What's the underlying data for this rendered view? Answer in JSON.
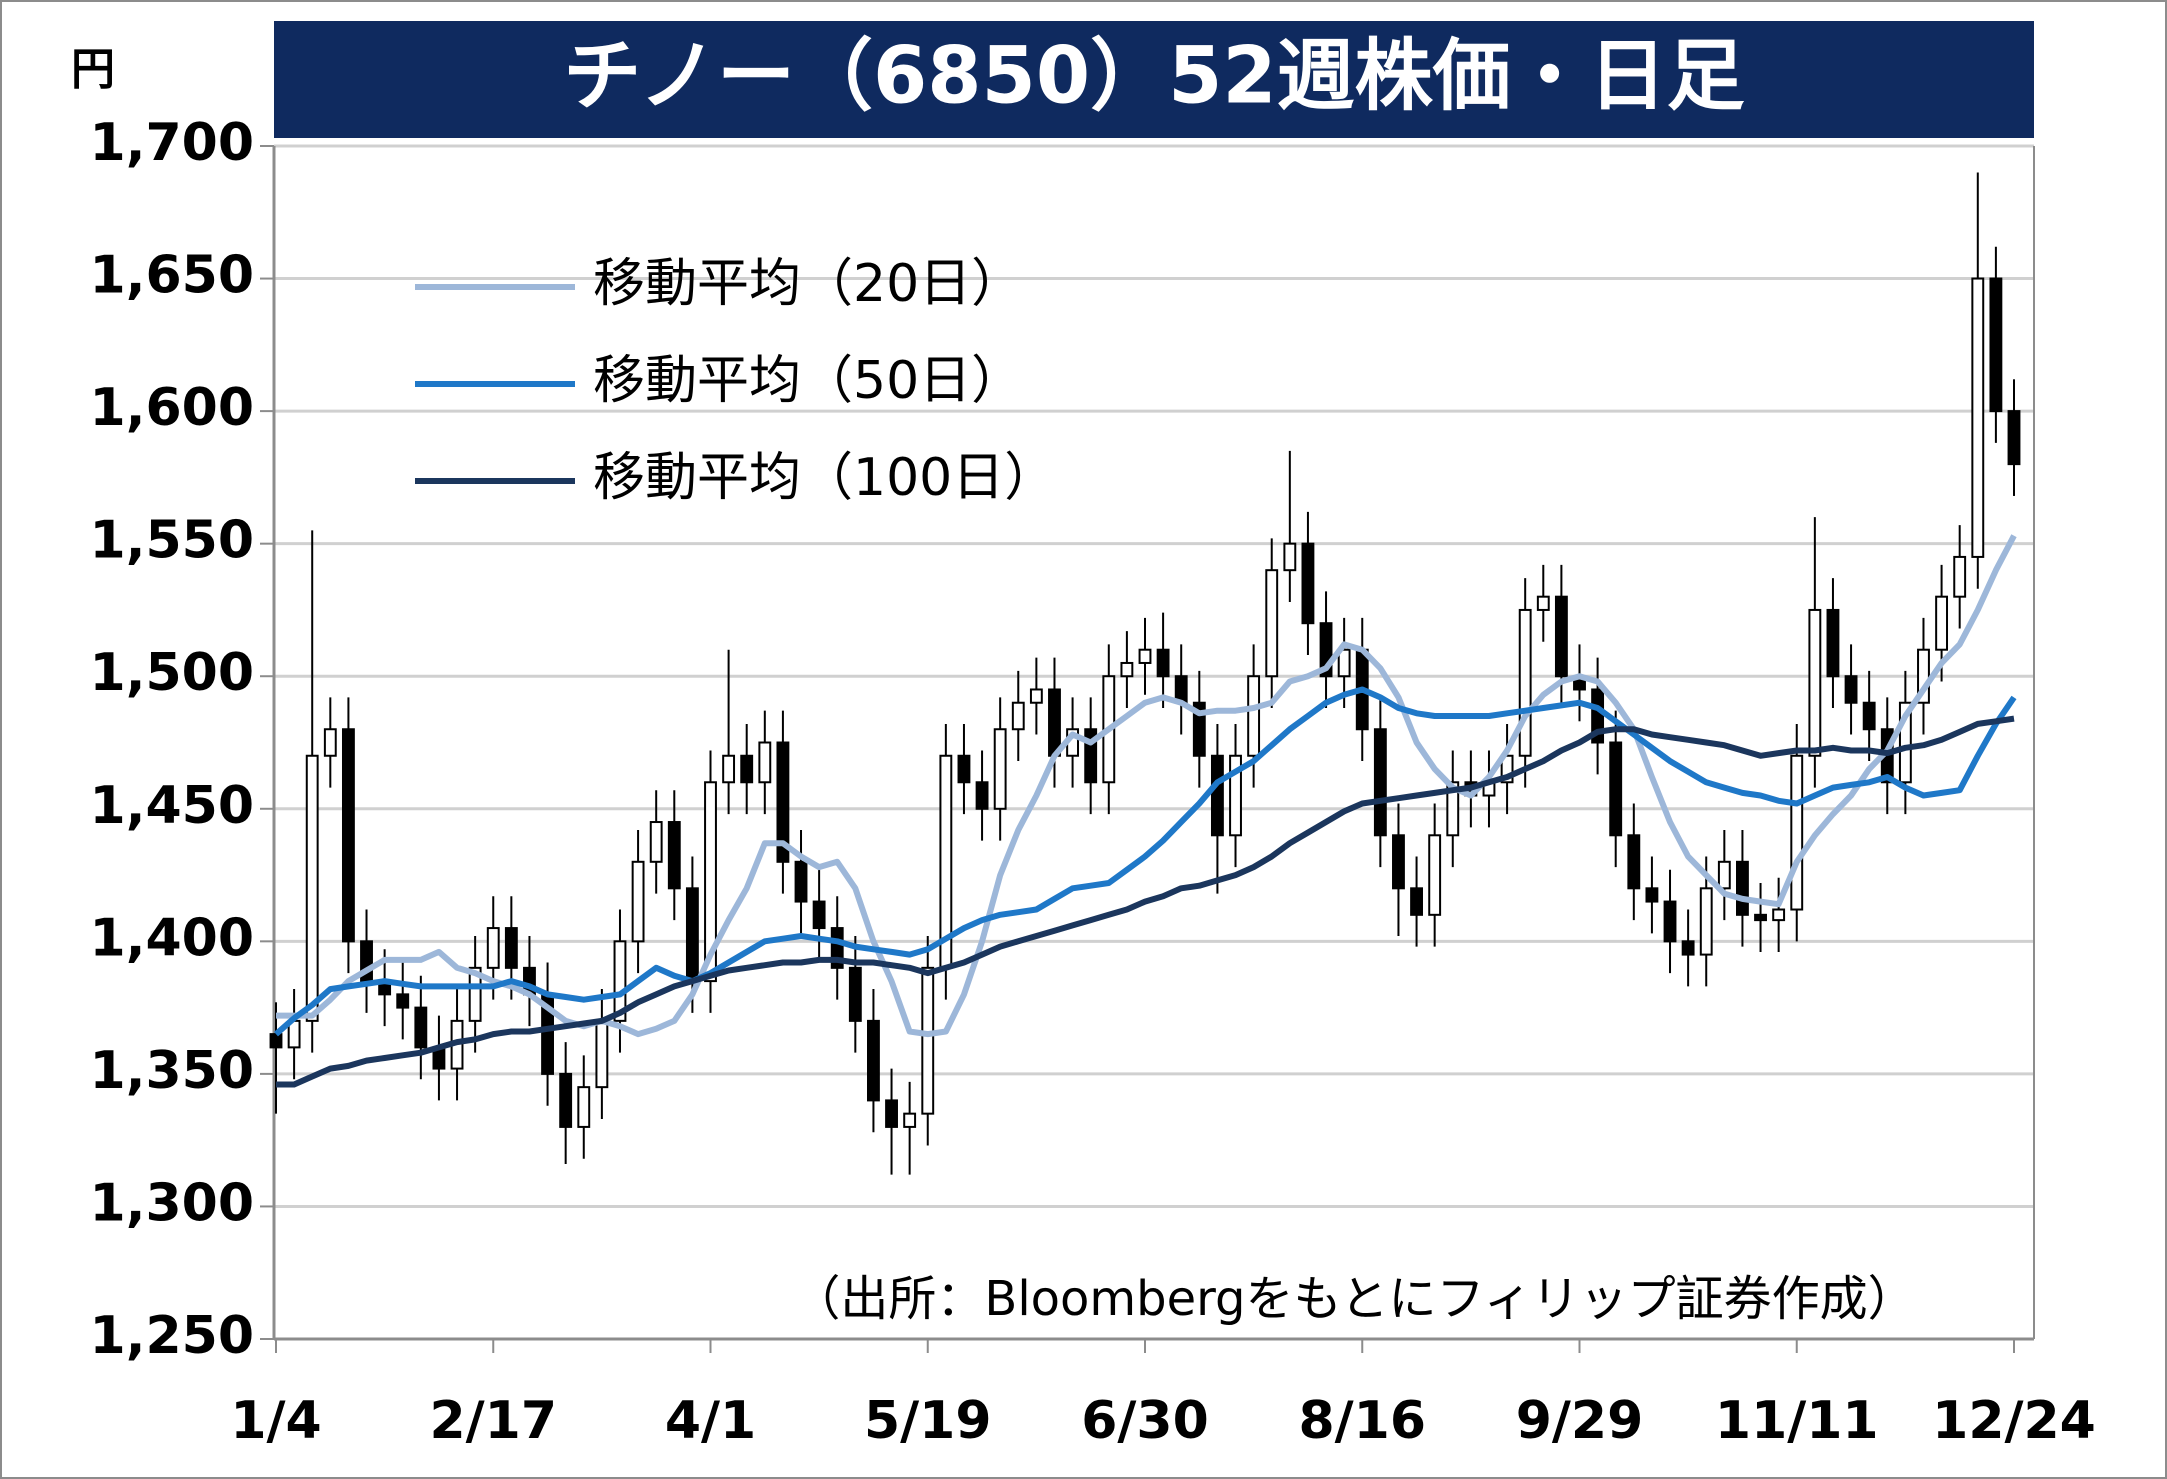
{
  "chart_data": {
    "type": "candlestick",
    "title": "チノー（6850）52週株価・日足",
    "y_unit": "円",
    "annotation": "（出所：Bloombergをもとにフィリップ証券作成）",
    "categories": [
      "1/4",
      null,
      null,
      null,
      null,
      null,
      null,
      null,
      null,
      null,
      null,
      null,
      "2/17",
      null,
      null,
      null,
      null,
      null,
      null,
      null,
      null,
      null,
      null,
      null,
      "4/1",
      null,
      null,
      null,
      null,
      null,
      null,
      null,
      null,
      null,
      null,
      null,
      "5/19",
      null,
      null,
      null,
      null,
      null,
      null,
      null,
      null,
      null,
      null,
      null,
      "6/30",
      null,
      null,
      null,
      null,
      null,
      null,
      null,
      null,
      null,
      null,
      null,
      "8/16",
      null,
      null,
      null,
      null,
      null,
      null,
      null,
      null,
      null,
      null,
      null,
      "9/29",
      null,
      null,
      null,
      null,
      null,
      null,
      null,
      null,
      null,
      null,
      null,
      "11/11",
      null,
      null,
      null,
      null,
      null,
      null,
      null,
      null,
      null,
      null,
      null,
      "12/24"
    ],
    "open": [
      1365,
      1360,
      1370,
      1470,
      1480,
      1400,
      1385,
      1380,
      1375,
      1360,
      1352,
      1370,
      1390,
      1405,
      1390,
      1380,
      1350,
      1330,
      1345,
      1370,
      1400,
      1430,
      1445,
      1420,
      1385,
      1460,
      1470,
      1460,
      1475,
      1430,
      1415,
      1405,
      1390,
      1370,
      1340,
      1330,
      1335,
      1390,
      1470,
      1460,
      1450,
      1480,
      1490,
      1495,
      1470,
      1480,
      1460,
      1500,
      1505,
      1510,
      1500,
      1490,
      1470,
      1440,
      1470,
      1500,
      1540,
      1550,
      1520,
      1500,
      1510,
      1480,
      1440,
      1420,
      1410,
      1440,
      1460,
      1455,
      1460,
      1470,
      1525,
      1530,
      1500,
      1495,
      1475,
      1440,
      1420,
      1415,
      1400,
      1395,
      1420,
      1430,
      1410,
      1408,
      1412,
      1470,
      1525,
      1500,
      1490,
      1480,
      1460,
      1490,
      1510,
      1530,
      1545,
      1650,
      1600
    ],
    "high": [
      1377,
      1382,
      1555,
      1492,
      1492,
      1412,
      1397,
      1392,
      1387,
      1372,
      1382,
      1402,
      1417,
      1417,
      1402,
      1392,
      1362,
      1357,
      1382,
      1412,
      1442,
      1457,
      1457,
      1432,
      1472,
      1510,
      1482,
      1487,
      1487,
      1442,
      1427,
      1417,
      1402,
      1382,
      1352,
      1347,
      1402,
      1482,
      1482,
      1472,
      1492,
      1502,
      1507,
      1507,
      1492,
      1492,
      1512,
      1517,
      1522,
      1524,
      1512,
      1502,
      1482,
      1482,
      1512,
      1552,
      1585,
      1562,
      1532,
      1522,
      1522,
      1492,
      1452,
      1432,
      1452,
      1472,
      1472,
      1472,
      1482,
      1537,
      1542,
      1542,
      1512,
      1507,
      1487,
      1452,
      1432,
      1427,
      1412,
      1432,
      1442,
      1442,
      1422,
      1424,
      1482,
      1560,
      1537,
      1512,
      1502,
      1492,
      1502,
      1522,
      1542,
      1557,
      1690,
      1662,
      1612
    ],
    "low": [
      1335,
      1348,
      1358,
      1458,
      1388,
      1373,
      1368,
      1363,
      1348,
      1340,
      1340,
      1358,
      1378,
      1378,
      1368,
      1338,
      1316,
      1318,
      1333,
      1358,
      1388,
      1418,
      1408,
      1373,
      1373,
      1448,
      1448,
      1448,
      1418,
      1403,
      1393,
      1378,
      1358,
      1328,
      1312,
      1312,
      1323,
      1378,
      1448,
      1438,
      1438,
      1468,
      1478,
      1458,
      1458,
      1448,
      1448,
      1488,
      1493,
      1488,
      1478,
      1458,
      1418,
      1428,
      1458,
      1488,
      1528,
      1508,
      1488,
      1488,
      1468,
      1428,
      1402,
      1398,
      1398,
      1428,
      1443,
      1443,
      1448,
      1458,
      1513,
      1488,
      1483,
      1463,
      1428,
      1408,
      1403,
      1388,
      1383,
      1383,
      1408,
      1398,
      1396,
      1396,
      1400,
      1458,
      1488,
      1478,
      1468,
      1448,
      1448,
      1478,
      1498,
      1518,
      1533,
      1588,
      1568
    ],
    "close": [
      1360,
      1370,
      1470,
      1480,
      1400,
      1385,
      1380,
      1375,
      1360,
      1352,
      1370,
      1390,
      1405,
      1390,
      1380,
      1350,
      1330,
      1345,
      1370,
      1400,
      1430,
      1445,
      1420,
      1385,
      1460,
      1470,
      1460,
      1475,
      1430,
      1415,
      1405,
      1390,
      1370,
      1340,
      1330,
      1335,
      1390,
      1470,
      1460,
      1450,
      1480,
      1490,
      1495,
      1470,
      1480,
      1460,
      1500,
      1505,
      1510,
      1500,
      1490,
      1470,
      1440,
      1470,
      1500,
      1540,
      1550,
      1520,
      1500,
      1510,
      1480,
      1440,
      1420,
      1410,
      1440,
      1460,
      1455,
      1460,
      1470,
      1525,
      1530,
      1500,
      1495,
      1475,
      1440,
      1420,
      1415,
      1400,
      1395,
      1420,
      1430,
      1410,
      1408,
      1412,
      1470,
      1525,
      1500,
      1490,
      1480,
      1460,
      1490,
      1510,
      1530,
      1545,
      1650,
      1600,
      1580
    ],
    "up_color": "#ffffff",
    "down_color": "#000000",
    "series": [
      {
        "name": "移動平均（20日）",
        "color": "#9db7d9",
        "values": [
          1372,
          1372,
          1372,
          1378,
          1385,
          1389,
          1393,
          1393,
          1393,
          1396,
          1390,
          1388,
          1385,
          1383,
          1380,
          1375,
          1370,
          1368,
          1370,
          1368,
          1365,
          1367,
          1370,
          1380,
          1395,
          1408,
          1420,
          1437,
          1437,
          1432,
          1428,
          1430,
          1420,
          1400,
          1385,
          1366,
          1365,
          1366,
          1380,
          1400,
          1425,
          1442,
          1455,
          1470,
          1478,
          1475,
          1480,
          1485,
          1490,
          1492,
          1490,
          1486,
          1487,
          1487,
          1488,
          1490,
          1498,
          1500,
          1503,
          1512,
          1510,
          1503,
          1492,
          1475,
          1465,
          1458,
          1455,
          1462,
          1472,
          1485,
          1493,
          1498,
          1500,
          1498,
          1490,
          1480,
          1462,
          1445,
          1432,
          1425,
          1418,
          1416,
          1415,
          1414,
          1430,
          1440,
          1448,
          1455,
          1465,
          1472,
          1485,
          1495,
          1505,
          1512,
          1525,
          1540,
          1553
        ]
      },
      {
        "name": "移動平均（50日）",
        "color": "#1f78c8",
        "values": [
          1365,
          1371,
          1376,
          1382,
          1383,
          1384,
          1385,
          1384,
          1383,
          1383,
          1383,
          1383,
          1383,
          1385,
          1383,
          1380,
          1379,
          1378,
          1379,
          1380,
          1385,
          1390,
          1387,
          1385,
          1388,
          1392,
          1396,
          1400,
          1401,
          1402,
          1401,
          1400,
          1398,
          1397,
          1396,
          1395,
          1397,
          1401,
          1405,
          1408,
          1410,
          1411,
          1412,
          1416,
          1420,
          1421,
          1422,
          1427,
          1432,
          1438,
          1445,
          1452,
          1460,
          1464,
          1468,
          1474,
          1480,
          1485,
          1490,
          1493,
          1495,
          1492,
          1488,
          1486,
          1485,
          1485,
          1485,
          1485,
          1486,
          1487,
          1488,
          1489,
          1490,
          1488,
          1483,
          1478,
          1473,
          1468,
          1464,
          1460,
          1458,
          1456,
          1455,
          1453,
          1452,
          1455,
          1458,
          1459,
          1460,
          1462,
          1458,
          1455,
          1456,
          1457,
          1470,
          1482,
          1492
        ]
      },
      {
        "name": "移動平均（100日）",
        "color": "#1b365d",
        "values": [
          1346,
          1346,
          1349,
          1352,
          1353,
          1355,
          1356,
          1357,
          1358,
          1360,
          1362,
          1363,
          1365,
          1366,
          1366,
          1367,
          1368,
          1369,
          1370,
          1373,
          1377,
          1380,
          1383,
          1385,
          1387,
          1389,
          1390,
          1391,
          1392,
          1392,
          1393,
          1393,
          1392,
          1392,
          1391,
          1390,
          1388,
          1390,
          1392,
          1395,
          1398,
          1400,
          1402,
          1404,
          1406,
          1408,
          1410,
          1412,
          1415,
          1417,
          1420,
          1421,
          1423,
          1425,
          1428,
          1432,
          1437,
          1441,
          1445,
          1449,
          1452,
          1453,
          1454,
          1455,
          1456,
          1457,
          1458,
          1460,
          1462,
          1465,
          1468,
          1472,
          1475,
          1479,
          1480,
          1480,
          1478,
          1477,
          1476,
          1475,
          1474,
          1472,
          1470,
          1471,
          1472,
          1472,
          1473,
          1472,
          1472,
          1471,
          1473,
          1474,
          1476,
          1479,
          1482,
          1483,
          1484
        ]
      }
    ],
    "ylim": [
      1250,
      1700
    ],
    "yticks": [
      {
        "value": 1250,
        "label": "1,250"
      },
      {
        "value": 1300,
        "label": "1,300"
      },
      {
        "value": 1350,
        "label": "1,350"
      },
      {
        "value": 1400,
        "label": "1,400"
      },
      {
        "value": 1450,
        "label": "1,450"
      },
      {
        "value": 1500,
        "label": "1,500"
      },
      {
        "value": 1550,
        "label": "1,550"
      },
      {
        "value": 1600,
        "label": "1,600"
      },
      {
        "value": 1650,
        "label": "1,650"
      },
      {
        "value": 1700,
        "label": "1,700"
      }
    ],
    "grid": true,
    "legend": "upper left"
  }
}
